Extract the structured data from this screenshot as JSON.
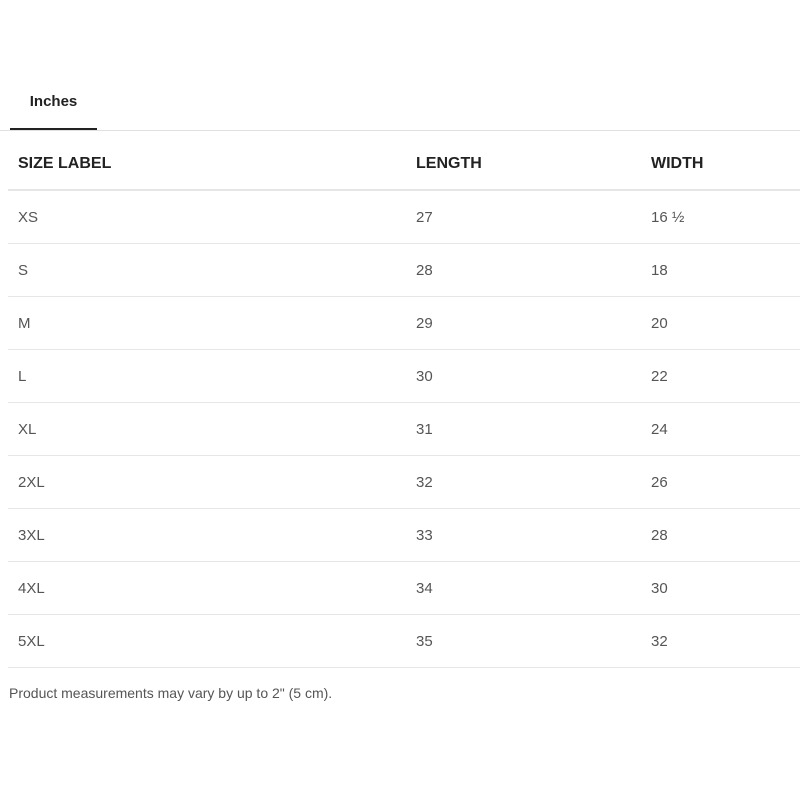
{
  "tabs": [
    {
      "label": "Inches",
      "active": true
    }
  ],
  "table": {
    "headers": [
      "SIZE LABEL",
      "LENGTH",
      "WIDTH"
    ],
    "rows": [
      [
        "XS",
        "27",
        "16 ½"
      ],
      [
        "S",
        "28",
        "18"
      ],
      [
        "M",
        "29",
        "20"
      ],
      [
        "L",
        "30",
        "22"
      ],
      [
        "XL",
        "31",
        "24"
      ],
      [
        "2XL",
        "32",
        "26"
      ],
      [
        "3XL",
        "33",
        "28"
      ],
      [
        "4XL",
        "34",
        "30"
      ],
      [
        "5XL",
        "35",
        "32"
      ]
    ]
  },
  "note": "Product measurements may vary by up to 2\" (5 cm)."
}
